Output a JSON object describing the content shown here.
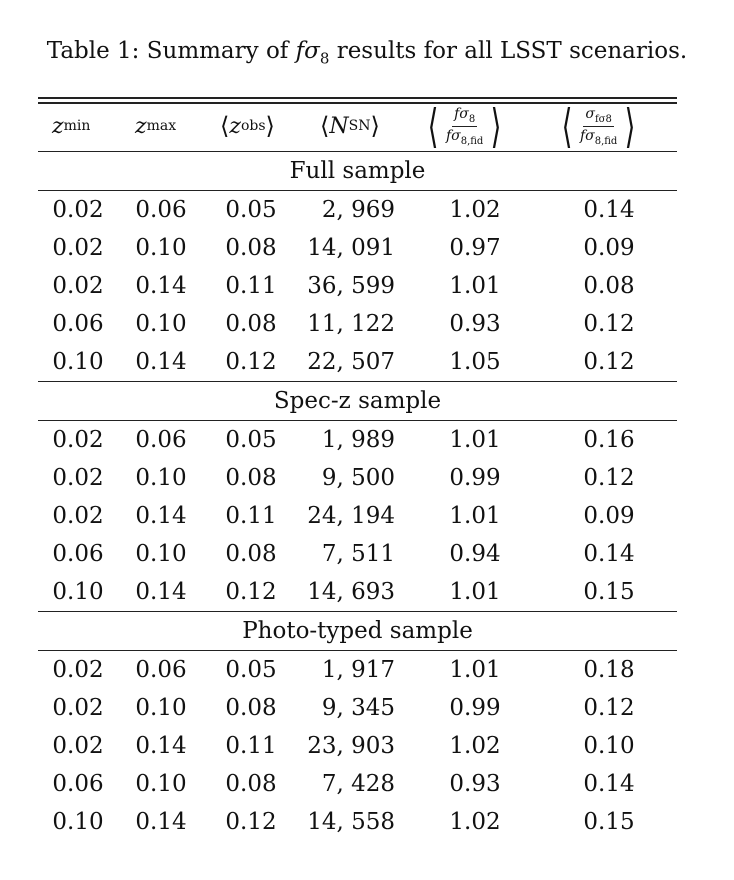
{
  "caption": {
    "prefix": "Table 1: Summary of ",
    "f": "f",
    "sigma": "σ",
    "sub8": "8",
    "suffix": " results for all LSST scenarios."
  },
  "headers": {
    "zmin_var": "z",
    "zmin_sub": "min",
    "zmax_var": "z",
    "zmax_sub": "max",
    "zobs_var": "z",
    "zobs_sub": "obs",
    "nsn_var": "N",
    "nsn_sub": "SN",
    "lang": "⟨",
    "rang": "⟩",
    "ratio_num": "fσ",
    "ratio_num_sub": "8",
    "ratio_den": "fσ",
    "ratio_den_sub": "8,fid",
    "err_num": "σ",
    "err_num_sub": "fσ8",
    "err_den": "fσ",
    "err_den_sub": "8,fid"
  },
  "sections": [
    {
      "title": "Full sample",
      "rows": [
        [
          "0.02",
          "0.06",
          "0.05",
          "2, 969",
          "1.02",
          "0.14"
        ],
        [
          "0.02",
          "0.10",
          "0.08",
          "14, 091",
          "0.97",
          "0.09"
        ],
        [
          "0.02",
          "0.14",
          "0.11",
          "36, 599",
          "1.01",
          "0.08"
        ],
        [
          "0.06",
          "0.10",
          "0.08",
          "11, 122",
          "0.93",
          "0.12"
        ],
        [
          "0.10",
          "0.14",
          "0.12",
          "22, 507",
          "1.05",
          "0.12"
        ]
      ]
    },
    {
      "title": "Spec-z sample",
      "rows": [
        [
          "0.02",
          "0.06",
          "0.05",
          "1, 989",
          "1.01",
          "0.16"
        ],
        [
          "0.02",
          "0.10",
          "0.08",
          "9, 500",
          "0.99",
          "0.12"
        ],
        [
          "0.02",
          "0.14",
          "0.11",
          "24, 194",
          "1.01",
          "0.09"
        ],
        [
          "0.06",
          "0.10",
          "0.08",
          "7, 511",
          "0.94",
          "0.14"
        ],
        [
          "0.10",
          "0.14",
          "0.12",
          "14, 693",
          "1.01",
          "0.15"
        ]
      ]
    },
    {
      "title": "Photo-typed sample",
      "rows": [
        [
          "0.02",
          "0.06",
          "0.05",
          "1, 917",
          "1.01",
          "0.18"
        ],
        [
          "0.02",
          "0.10",
          "0.08",
          "9, 345",
          "0.99",
          "0.12"
        ],
        [
          "0.02",
          "0.14",
          "0.11",
          "23, 903",
          "1.02",
          "0.10"
        ],
        [
          "0.06",
          "0.10",
          "0.08",
          "7, 428",
          "0.93",
          "0.14"
        ],
        [
          "0.10",
          "0.14",
          "0.12",
          "14, 558",
          "1.02",
          "0.15"
        ]
      ]
    }
  ]
}
